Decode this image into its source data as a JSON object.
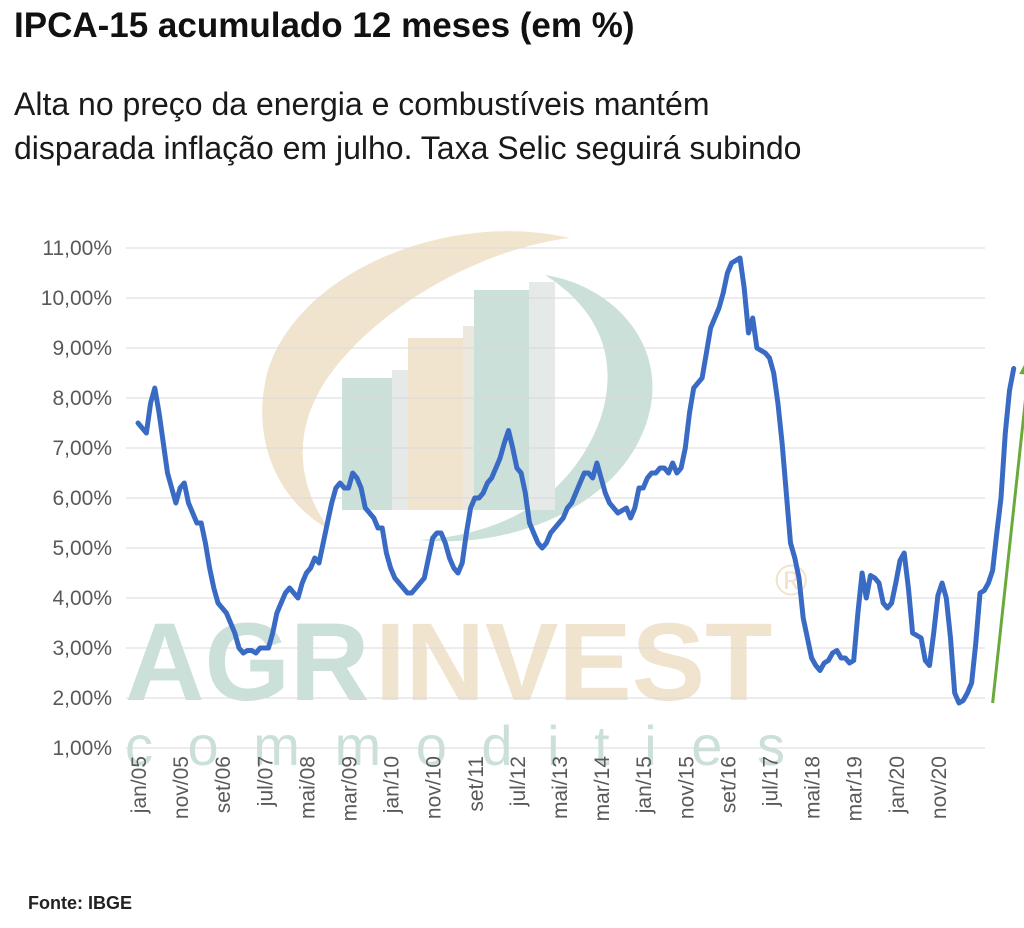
{
  "title": "IPCA-15 acumulado 12 meses (em %)",
  "subtitle_lines": [
    "Alta no preço da energia e combustíveis mantém",
    "disparada inflação em julho. Taxa Selic seguirá subindo"
  ],
  "source": "Fonte: IBGE",
  "watermark": {
    "brand_part1": "AGR",
    "brand_part2": "INVEST",
    "tagline": "commodities",
    "registered": "®"
  },
  "colors": {
    "line": "#3a6bc4",
    "arrow": "#6aaa3a",
    "grid": "#d9d9d9",
    "axis_text": "#595959",
    "wm_teal": "#c7ddd6",
    "wm_beige": "#f0e2c9"
  },
  "chart_data": {
    "type": "line",
    "y_tick_labels": [
      "1,00%",
      "2,00%",
      "3,00%",
      "4,00%",
      "5,00%",
      "6,00%",
      "7,00%",
      "8,00%",
      "9,00%",
      "10,00%",
      "11,00%"
    ],
    "ylim": [
      1,
      11
    ],
    "x_tick_labels": [
      "jan/05",
      "nov/05",
      "set/06",
      "jul/07",
      "mai/08",
      "mar/09",
      "jan/10",
      "nov/10",
      "set/11",
      "jul/12",
      "mai/13",
      "mar/14",
      "jan/15",
      "nov/15",
      "set/16",
      "jul/17",
      "mai/18",
      "mar/19",
      "jan/20",
      "nov/20"
    ],
    "x_tick_index": [
      0,
      10,
      20,
      30,
      40,
      50,
      60,
      70,
      80,
      90,
      100,
      110,
      120,
      130,
      140,
      150,
      160,
      170,
      180,
      190
    ],
    "grid": "horizontal",
    "legend": "none",
    "series": [
      {
        "values": [
          7.5,
          7.4,
          7.3,
          7.9,
          8.2,
          7.7,
          7.1,
          6.5,
          6.2,
          5.9,
          6.2,
          6.3,
          5.9,
          5.7,
          5.5,
          5.5,
          5.1,
          4.6,
          4.2,
          3.9,
          3.8,
          3.7,
          3.5,
          3.3,
          3.0,
          2.9,
          2.95,
          2.95,
          2.9,
          3.0,
          3.0,
          3.0,
          3.3,
          3.7,
          3.9,
          4.1,
          4.2,
          4.1,
          4.0,
          4.3,
          4.5,
          4.6,
          4.8,
          4.7,
          5.1,
          5.5,
          5.9,
          6.2,
          6.3,
          6.2,
          6.2,
          6.5,
          6.4,
          6.2,
          5.8,
          5.7,
          5.6,
          5.4,
          5.4,
          4.9,
          4.6,
          4.4,
          4.3,
          4.2,
          4.1,
          4.1,
          4.2,
          4.3,
          4.4,
          4.8,
          5.2,
          5.3,
          5.3,
          5.1,
          4.8,
          4.6,
          4.5,
          4.7,
          5.3,
          5.8,
          6.0,
          6.0,
          6.1,
          6.3,
          6.4,
          6.6,
          6.8,
          7.1,
          7.35,
          7.0,
          6.6,
          6.5,
          6.1,
          5.5,
          5.3,
          5.1,
          5.0,
          5.1,
          5.3,
          5.4,
          5.5,
          5.6,
          5.8,
          5.9,
          6.1,
          6.3,
          6.5,
          6.5,
          6.4,
          6.7,
          6.4,
          6.1,
          5.9,
          5.8,
          5.7,
          5.75,
          5.8,
          5.6,
          5.8,
          6.2,
          6.2,
          6.4,
          6.5,
          6.5,
          6.6,
          6.6,
          6.5,
          6.7,
          6.5,
          6.6,
          7.0,
          7.7,
          8.2,
          8.3,
          8.4,
          8.9,
          9.4,
          9.6,
          9.8,
          10.1,
          10.5,
          10.7,
          10.75,
          10.8,
          10.2,
          9.3,
          9.6,
          9.0,
          8.95,
          8.9,
          8.8,
          8.5,
          7.9,
          7.1,
          6.1,
          5.1,
          4.8,
          4.4,
          3.6,
          3.2,
          2.8,
          2.65,
          2.55,
          2.7,
          2.75,
          2.9,
          2.95,
          2.8,
          2.8,
          2.7,
          2.75,
          3.7,
          4.5,
          4.0,
          4.45,
          4.4,
          4.3,
          3.9,
          3.8,
          3.9,
          4.3,
          4.75,
          4.9,
          4.2,
          3.3,
          3.25,
          3.2,
          2.75,
          2.65,
          3.3,
          4.05,
          4.3,
          4.0,
          3.2,
          2.1,
          1.9,
          1.95,
          2.1,
          2.3,
          3.1,
          4.1,
          4.15,
          4.3,
          4.55,
          5.3,
          6.0,
          7.3,
          8.15,
          8.59
        ]
      }
    ],
    "annotations": [
      {
        "type": "arrow",
        "x_from": 203,
        "y_from": 1.9,
        "x_to": 212,
        "y_to": 8.9
      }
    ]
  }
}
